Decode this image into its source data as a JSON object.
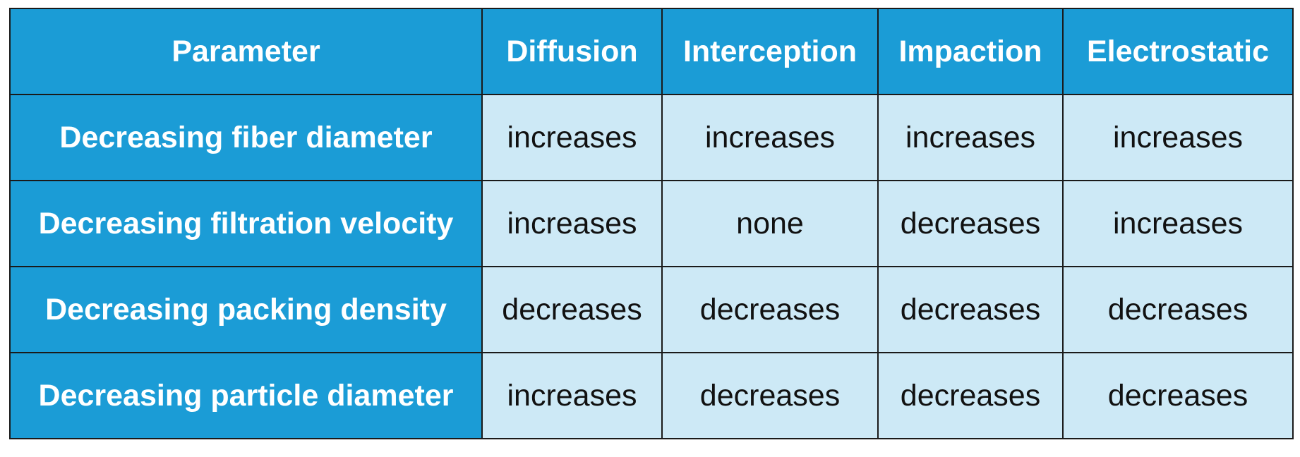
{
  "table": {
    "header": {
      "parameter": "Parameter",
      "columns": [
        "Diffusion",
        "Interception",
        "Impaction",
        "Electrostatic"
      ]
    },
    "rows": [
      {
        "label": "Decreasing fiber diameter",
        "values": [
          "increases",
          "increases",
          "increases",
          "increases"
        ]
      },
      {
        "label": "Decreasing filtration velocity",
        "values": [
          "increases",
          "none",
          "decreases",
          "increases"
        ]
      },
      {
        "label": "Decreasing packing density",
        "values": [
          "decreases",
          "decreases",
          "decreases",
          "decreases"
        ]
      },
      {
        "label": "Decreasing particle diameter",
        "values": [
          "increases",
          "decreases",
          "decreases",
          "decreases"
        ]
      }
    ]
  },
  "colors": {
    "header_bg": "#1b9cd6",
    "cell_bg": "#cde9f6",
    "border": "#1a1a1a",
    "header_text": "#ffffff"
  }
}
